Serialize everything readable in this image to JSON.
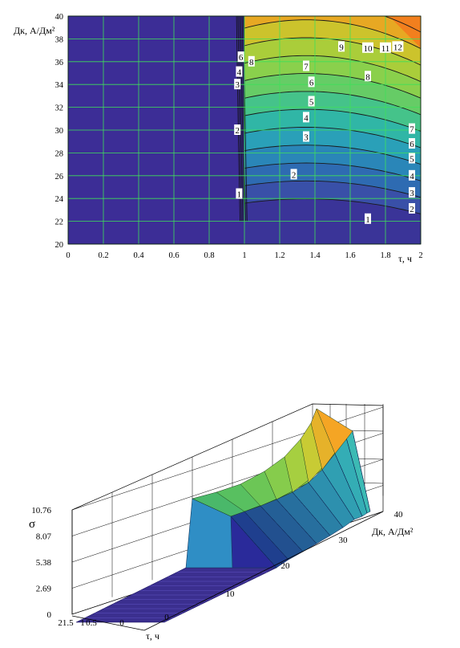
{
  "chart_data": [
    {
      "type": "contour",
      "xlabel": "τ, ч",
      "ylabel": "Дк, А/Дм²",
      "xlim": [
        0,
        2
      ],
      "ylim": [
        20,
        40
      ],
      "x_ticks": [
        "0",
        "0.2",
        "0.4",
        "0.6",
        "0.8",
        "1",
        "1.2",
        "1.4",
        "1.6",
        "1.8",
        "2"
      ],
      "y_ticks": [
        "20",
        "22",
        "24",
        "26",
        "28",
        "30",
        "32",
        "34",
        "36",
        "38",
        "40"
      ],
      "grid": true,
      "levels": [
        1,
        2,
        3,
        4,
        5,
        6,
        7,
        8,
        9,
        10,
        11,
        12
      ],
      "contour_labels": [
        {
          "text": "1",
          "x": 1.7,
          "y": 22.2
        },
        {
          "text": "2",
          "x": 1.28,
          "y": 26.1
        },
        {
          "text": "3",
          "x": 1.35,
          "y": 29.4
        },
        {
          "text": "4",
          "x": 1.35,
          "y": 31.1
        },
        {
          "text": "5",
          "x": 1.38,
          "y": 32.5
        },
        {
          "text": "6",
          "x": 1.38,
          "y": 34.2
        },
        {
          "text": "7",
          "x": 1.35,
          "y": 35.6
        },
        {
          "text": "8",
          "x": 1.7,
          "y": 34.7
        },
        {
          "text": "9",
          "x": 1.55,
          "y": 37.3
        },
        {
          "text": "10",
          "x": 1.7,
          "y": 37.2
        },
        {
          "text": "11",
          "x": 1.8,
          "y": 37.2
        },
        {
          "text": "12",
          "x": 1.87,
          "y": 37.3
        },
        {
          "text": "7",
          "x": 1.95,
          "y": 30.1
        },
        {
          "text": "6",
          "x": 1.95,
          "y": 28.8
        },
        {
          "text": "5",
          "x": 1.95,
          "y": 27.5
        },
        {
          "text": "4",
          "x": 1.95,
          "y": 26.0
        },
        {
          "text": "3",
          "x": 1.95,
          "y": 24.5
        },
        {
          "text": "2",
          "x": 1.95,
          "y": 23.1
        },
        {
          "text": "1",
          "x": 0.97,
          "y": 24.4
        },
        {
          "text": "2",
          "x": 0.96,
          "y": 30.0
        },
        {
          "text": "3",
          "x": 0.96,
          "y": 34.0
        },
        {
          "text": "4",
          "x": 0.97,
          "y": 35.1
        },
        {
          "text": "6",
          "x": 0.98,
          "y": 36.4
        },
        {
          "text": "8",
          "x": 1.04,
          "y": 36.0
        }
      ]
    },
    {
      "type": "surface3d",
      "zlabel": "σ",
      "xlabel": "τ, ч",
      "ylabel": "Дк, А/Дм²",
      "z_ticks": [
        "0",
        "2.69",
        "5.38",
        "8.07",
        "10.76"
      ],
      "y_ticks": [
        "0",
        "10",
        "20",
        "30",
        "40"
      ],
      "x_ticks": [
        "21.5",
        "1",
        "0.5",
        "0"
      ],
      "zlim": [
        0,
        10.76
      ]
    }
  ]
}
